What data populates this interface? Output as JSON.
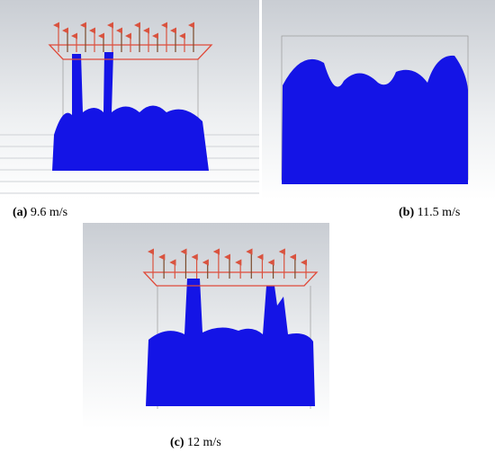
{
  "panels": [
    {
      "label": "(a)",
      "caption": "9.6 m/s"
    },
    {
      "label": "(b)",
      "caption": "11.5 m/s"
    },
    {
      "label": "(c)",
      "caption": "12 m/s"
    }
  ]
}
